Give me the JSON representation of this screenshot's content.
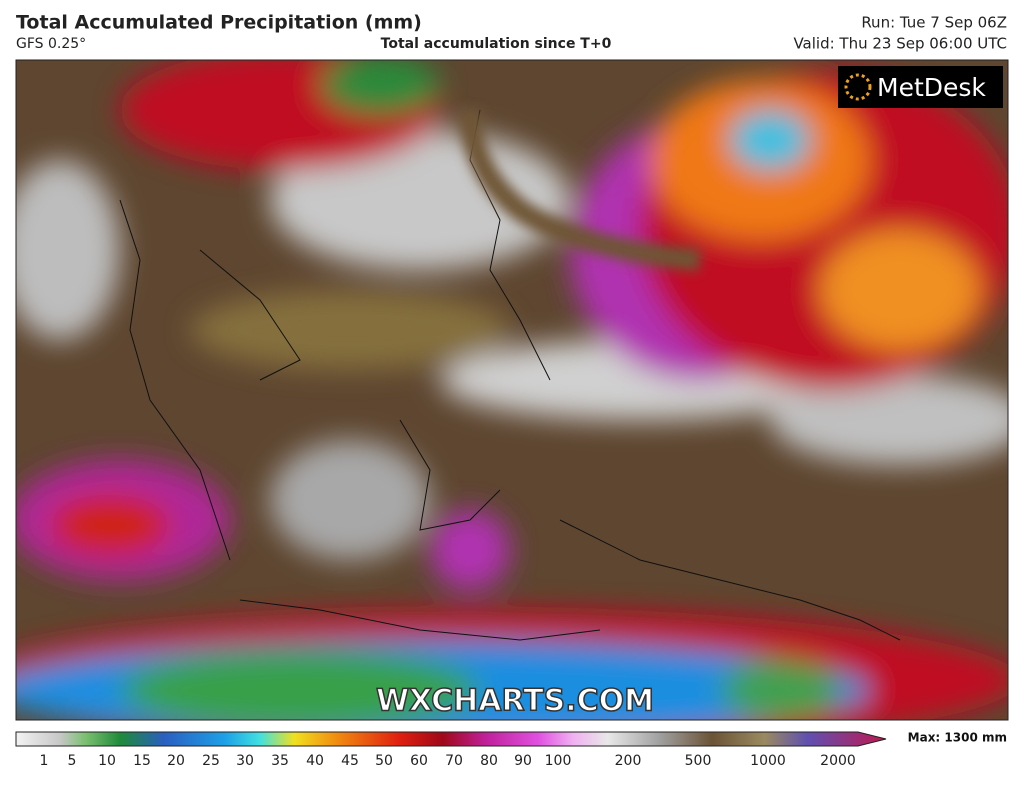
{
  "header": {
    "title": "Total Accumulated Precipitation (mm)",
    "model": "GFS 0.25°",
    "subtitle": "Total accumulation since T+0",
    "run": "Run: Tue 7 Sep 06Z",
    "valid": "Valid: Thu 23 Sep 06:00 UTC"
  },
  "map": {
    "logo": "MetDesk",
    "watermark": "WXCHARTS.COM"
  },
  "legend": {
    "max": "Max: 1300 mm",
    "ticks": [
      1,
      5,
      10,
      15,
      20,
      25,
      30,
      35,
      40,
      45,
      50,
      60,
      70,
      80,
      90,
      100,
      200,
      500,
      1000,
      2000
    ]
  }
}
